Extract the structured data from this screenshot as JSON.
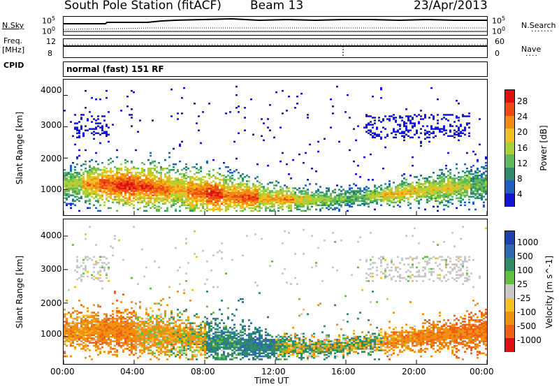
{
  "header": {
    "title": "South Pole Station (fitACF)",
    "beam": "Beam 13",
    "date": "23/Apr/2013"
  },
  "left_labels": {
    "nsky": "N.Sky",
    "freq": "Freq.",
    "freq_unit": "[MHz]",
    "cpid": "CPID"
  },
  "right_labels": {
    "nsearch": "N.Search",
    "nave": "Nave"
  },
  "top_ticks": {
    "sky_left": [
      "10^5",
      "10^0"
    ],
    "sky_right": [
      "10^5",
      "10^0"
    ],
    "freq_left": [
      "12",
      "8"
    ],
    "freq_right": [
      "60",
      "0"
    ]
  },
  "cpid_text": "normal (fast) 151 RF",
  "panels": {
    "power": {
      "ylabel": "Slant Range [km]",
      "cb_label": "Power [dB]"
    },
    "velocity": {
      "ylabel": "Slant Range [km]",
      "cb_label": "Velocity [m s^-1]"
    }
  },
  "xaxis": {
    "label": "Time UT"
  },
  "chart_data": [
    {
      "type": "heatmap",
      "title": "Power",
      "ylabel": "Slant Range [km]",
      "xlabel": "Time UT",
      "x_ticks": [
        "00:00",
        "04:00",
        "08:00",
        "12:00",
        "16:00",
        "20:00",
        "00:00"
      ],
      "y_ticks": [
        "1000",
        "2000",
        "3000",
        "4000"
      ],
      "xlim": [
        0,
        24
      ],
      "ylim": [
        180,
        4500
      ],
      "colorbar": {
        "label": "Power [dB]",
        "ticks": [
          "4",
          "8",
          "12",
          "16",
          "20",
          "24",
          "28"
        ],
        "range": [
          0,
          30
        ],
        "colors": [
          "#1414d8",
          "#1f5fc0",
          "#2f8c6a",
          "#5fb85a",
          "#a8d038",
          "#f0c020",
          "#f08a10",
          "#ef4a14",
          "#e01010"
        ]
      },
      "band_mean_db": [
        {
          "x": 0.5,
          "db": 16
        },
        {
          "x": 1.5,
          "db": 22
        },
        {
          "x": 2.5,
          "db": 26
        },
        {
          "x": 3.5,
          "db": 28
        },
        {
          "x": 4.5,
          "db": 26
        },
        {
          "x": 5.5,
          "db": 24
        },
        {
          "x": 6.5,
          "db": 20
        },
        {
          "x": 7.5,
          "db": 24
        },
        {
          "x": 8.5,
          "db": 28
        },
        {
          "x": 9.5,
          "db": 24
        },
        {
          "x": 10.5,
          "db": 26
        },
        {
          "x": 11.5,
          "db": 20
        },
        {
          "x": 12.5,
          "db": 22
        },
        {
          "x": 13.5,
          "db": 18
        },
        {
          "x": 14.5,
          "db": 16
        },
        {
          "x": 15.5,
          "db": 14
        },
        {
          "x": 16.5,
          "db": 12
        },
        {
          "x": 17.5,
          "db": 16
        },
        {
          "x": 18.5,
          "db": 20
        },
        {
          "x": 19.5,
          "db": 20
        },
        {
          "x": 20.5,
          "db": 18
        },
        {
          "x": 21.5,
          "db": 18
        },
        {
          "x": 22.5,
          "db": 16
        },
        {
          "x": 23.5,
          "db": 12
        }
      ]
    },
    {
      "type": "heatmap",
      "title": "Velocity",
      "ylabel": "Slant Range [km]",
      "xlabel": "Time UT",
      "x_ticks": [
        "00:00",
        "04:00",
        "08:00",
        "12:00",
        "16:00",
        "20:00",
        "00:00"
      ],
      "y_ticks": [
        "1000",
        "2000",
        "3000",
        "4000"
      ],
      "xlim": [
        0,
        24
      ],
      "ylim": [
        180,
        4500
      ],
      "colorbar": {
        "label": "Velocity [m s^-1]",
        "ticks": [
          "1000",
          "500",
          "100",
          "25",
          "-25",
          "-100",
          "-500",
          "-1000"
        ],
        "colors": [
          "#2040b0",
          "#2f6ab0",
          "#2f8c6a",
          "#60c040",
          "#c8c8c8",
          "#f5c020",
          "#f09010",
          "#ef6014",
          "#e01010"
        ]
      },
      "band_mean_velocity": [
        {
          "x": 1,
          "v": -300
        },
        {
          "x": 3,
          "v": -400
        },
        {
          "x": 5,
          "v": -200
        },
        {
          "x": 7,
          "v": -100
        },
        {
          "x": 9,
          "v": 300
        },
        {
          "x": 11,
          "v": 500
        },
        {
          "x": 13,
          "v": 100
        },
        {
          "x": 15,
          "v": 50
        },
        {
          "x": 17,
          "v": 100
        },
        {
          "x": 19,
          "v": -300
        },
        {
          "x": 21,
          "v": -400
        },
        {
          "x": 23,
          "v": -500
        }
      ]
    }
  ]
}
